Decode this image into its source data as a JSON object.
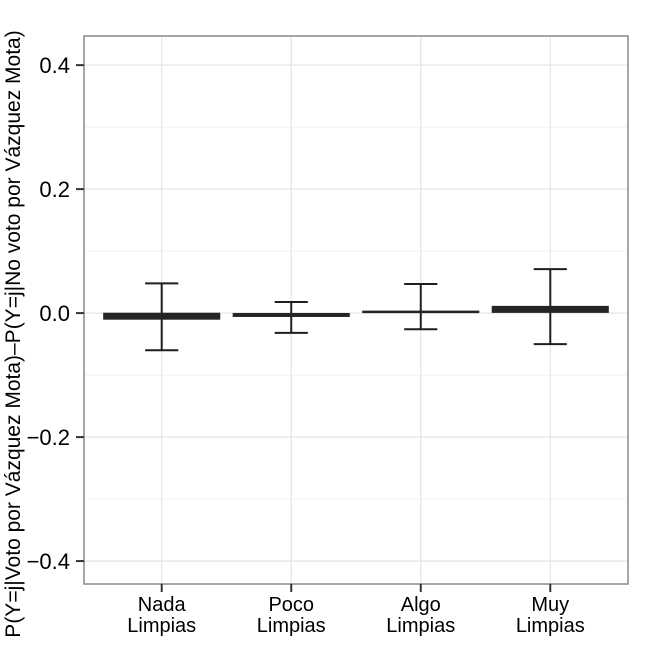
{
  "chart_data": {
    "type": "errorbar",
    "title": "",
    "xlabel": "",
    "ylabel": "P(Y=j|Voto por Vázquez Mota)–P(Y=j|No voto por Vázquez Mota)",
    "categories": [
      {
        "line1": "Nada",
        "line2": "Limpias"
      },
      {
        "line1": "Poco",
        "line2": "Limpias"
      },
      {
        "line1": "Algo",
        "line2": "Limpias"
      },
      {
        "line1": "Muy",
        "line2": "Limpias"
      }
    ],
    "series": [
      {
        "name": "P(Y=j|Voto por Vázquez Mota) minus P(Y=j|No voto por Vázquez Mota)",
        "estimates": [
          -0.005,
          -0.003,
          0.002,
          0.006
        ],
        "ci_lower": [
          -0.06,
          -0.032,
          -0.026,
          -0.05
        ],
        "ci_upper": [
          0.048,
          0.018,
          0.047,
          0.071
        ],
        "bar_thickness_px": [
          7,
          4,
          2.5,
          7
        ]
      }
    ],
    "yticks": [
      0.4,
      0.2,
      0.0,
      -0.2,
      -0.4
    ],
    "ytick_labels": [
      "0.4",
      "0.2",
      "0.0",
      "−0.2",
      "−0.4"
    ],
    "yminor": [
      0.3,
      0.1,
      -0.1,
      -0.3
    ],
    "ylim": [
      -0.437,
      0.447
    ],
    "grid": "horizontal major+minor, vertical major at categories",
    "legend": "none",
    "style": {
      "background": "#ffffff",
      "bar_color": "#252525",
      "whisker_color": "#1f1f1f",
      "grid_major_color": "#e6e6e6",
      "grid_minor_color": "#f3f3f3",
      "panel_border_color": "#919191",
      "tick_color": "#333333",
      "text_color": "#000000"
    }
  }
}
